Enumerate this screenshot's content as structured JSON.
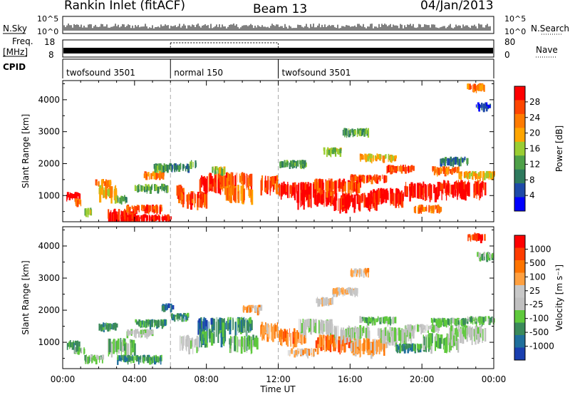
{
  "header": {
    "station": "Rankin Inlet (fitACF)",
    "beam": "Beam 13",
    "date": "04/Jan/2013"
  },
  "strip": {
    "nsky_label": "N.Sky",
    "nsearch_label": "N.Search",
    "nsky_ticks": [
      "10^5",
      "10^0"
    ],
    "nsearch_ticks": [
      "10^5",
      "10^0"
    ],
    "freq_label": "Freq.",
    "freq_unit": "[MHz]",
    "freq_ticks": [
      "18",
      "8"
    ],
    "nave_label": "Nave",
    "nave_ticks": [
      "80",
      "0"
    ],
    "cpid_label": "CPID",
    "programs": [
      {
        "name": "twofsound 3501",
        "start_hour": 0,
        "end_hour": 6
      },
      {
        "name": "normal 150",
        "start_hour": 6,
        "end_hour": 12
      },
      {
        "name": "twofsound 3501",
        "start_hour": 12,
        "end_hour": 24
      }
    ]
  },
  "colors": {
    "power": [
      "#0000ff",
      "#1e4aa8",
      "#2e7a5e",
      "#4ea048",
      "#9acd32",
      "#ffa500",
      "#ff7b00",
      "#ff4500",
      "#ff0000"
    ],
    "velocity": [
      "#1a3fb0",
      "#1f6f9c",
      "#3a8a5a",
      "#5fc93c",
      "#c0c0c0",
      "#c8c8c8",
      "#ffa040",
      "#ff7400",
      "#ff3c00",
      "#ff0000"
    ]
  },
  "chart_data": [
    {
      "type": "heatmap",
      "panel": "power",
      "ylabel": "Slant Range [km]",
      "xlabel": "",
      "xlim_hours": [
        0,
        24
      ],
      "ylim": [
        180,
        4600
      ],
      "yticks": [
        1000,
        2000,
        3000,
        4000
      ],
      "colorbar": {
        "label": "Power [dB]",
        "ticks": [
          4,
          8,
          12,
          16,
          20,
          24,
          28
        ],
        "range": [
          0,
          30
        ]
      },
      "cells": [
        [
          0.2,
          0.9,
          1000,
          1,
          9
        ],
        [
          0.6,
          1.0,
          800,
          1,
          6
        ],
        [
          1.2,
          1.6,
          500,
          1,
          4
        ],
        [
          1.8,
          2.6,
          1400,
          1,
          6
        ],
        [
          2.0,
          3.0,
          1100,
          2,
          5
        ],
        [
          2.5,
          4.0,
          350,
          2,
          8
        ],
        [
          3.0,
          3.5,
          900,
          1,
          3
        ],
        [
          3.2,
          6.0,
          300,
          1,
          8
        ],
        [
          3.5,
          5.5,
          600,
          1,
          7
        ],
        [
          4.0,
          5.8,
          1250,
          1,
          3
        ],
        [
          4.5,
          5.6,
          1650,
          1,
          6
        ],
        [
          5.0,
          6.0,
          1900,
          1,
          3
        ],
        [
          6.0,
          7.0,
          1900,
          1,
          2
        ],
        [
          6.3,
          6.8,
          1100,
          2,
          7
        ],
        [
          6.5,
          8.0,
          900,
          2,
          7
        ],
        [
          7.0,
          7.4,
          2000,
          1,
          3
        ],
        [
          7.6,
          8.8,
          1400,
          2,
          8
        ],
        [
          8.0,
          10.5,
          1500,
          2,
          7
        ],
        [
          9.0,
          10.5,
          1100,
          2,
          6
        ],
        [
          8.3,
          9.0,
          1800,
          1,
          4
        ],
        [
          11.0,
          12.0,
          1400,
          2,
          7
        ],
        [
          12.0,
          14.0,
          1200,
          2,
          8
        ],
        [
          12.0,
          13.5,
          2000,
          1,
          3
        ],
        [
          13.0,
          15.0,
          950,
          2,
          8
        ],
        [
          14.0,
          16.5,
          1300,
          2,
          7
        ],
        [
          15.0,
          17.5,
          850,
          2,
          8
        ],
        [
          16.0,
          18.0,
          1550,
          1,
          7
        ],
        [
          16.5,
          18.5,
          2200,
          1,
          5
        ],
        [
          17.0,
          19.0,
          1000,
          2,
          8
        ],
        [
          18.0,
          19.5,
          1850,
          1,
          7
        ],
        [
          19.0,
          21.0,
          1200,
          2,
          8
        ],
        [
          19.5,
          21.0,
          600,
          1,
          6
        ],
        [
          20.5,
          22.0,
          1800,
          1,
          6
        ],
        [
          21.0,
          22.5,
          2100,
          1,
          2
        ],
        [
          21.0,
          23.5,
          1250,
          2,
          8
        ],
        [
          22.0,
          24.0,
          1650,
          1,
          5
        ],
        [
          23.0,
          23.8,
          3800,
          1,
          1
        ],
        [
          22.5,
          23.5,
          4400,
          1,
          6
        ],
        [
          14.5,
          15.5,
          2400,
          1,
          4
        ],
        [
          15.5,
          17.0,
          3000,
          1,
          3
        ]
      ]
    },
    {
      "type": "heatmap",
      "panel": "velocity",
      "ylabel": "Slant Range [km]",
      "xlabel": "Time UT",
      "xlim_hours": [
        0,
        24
      ],
      "xticks": [
        "00:00",
        "04:00",
        "08:00",
        "12:00",
        "16:00",
        "20:00",
        "00:00"
      ],
      "ylim": [
        180,
        4600
      ],
      "yticks": [
        1000,
        2000,
        3000,
        4000
      ],
      "colorbar": {
        "label": "Velocity [m s⁻¹]",
        "ticks": [
          "1000",
          "500",
          "100",
          "25",
          "-25",
          "-100",
          "-500",
          "-1000"
        ]
      },
      "cells": [
        [
          0.2,
          0.9,
          950,
          1,
          2
        ],
        [
          0.6,
          1.2,
          750,
          1,
          3
        ],
        [
          1.2,
          2.2,
          500,
          1,
          3
        ],
        [
          2.0,
          3.0,
          1500,
          1,
          2
        ],
        [
          2.5,
          4.0,
          900,
          2,
          3
        ],
        [
          3.0,
          5.5,
          500,
          1,
          2
        ],
        [
          3.5,
          5.0,
          1300,
          1,
          4
        ],
        [
          4.0,
          5.8,
          1600,
          1,
          2
        ],
        [
          5.5,
          6.2,
          2100,
          1,
          1
        ],
        [
          6.0,
          7.0,
          1800,
          1,
          2
        ],
        [
          6.5,
          7.5,
          1000,
          2,
          4
        ],
        [
          7.4,
          8.4,
          1550,
          2,
          1
        ],
        [
          7.6,
          9.0,
          1200,
          2,
          2
        ],
        [
          8.5,
          10.5,
          1550,
          2,
          2
        ],
        [
          9.2,
          10.8,
          1000,
          2,
          3
        ],
        [
          10.0,
          11.0,
          2050,
          1,
          6
        ],
        [
          11.0,
          12.0,
          1400,
          2,
          6
        ],
        [
          12.0,
          13.5,
          1200,
          2,
          7
        ],
        [
          12.5,
          14.0,
          700,
          1,
          6
        ],
        [
          13.0,
          15.0,
          1500,
          2,
          4
        ],
        [
          14.0,
          16.0,
          1000,
          2,
          7
        ],
        [
          15.0,
          17.0,
          1300,
          2,
          4
        ],
        [
          16.0,
          18.0,
          900,
          2,
          6
        ],
        [
          16.5,
          18.5,
          1700,
          1,
          3
        ],
        [
          17.5,
          19.5,
          1250,
          2,
          4
        ],
        [
          18.5,
          20.5,
          850,
          1,
          2
        ],
        [
          19.0,
          21.0,
          1450,
          1,
          4
        ],
        [
          20.0,
          22.0,
          1050,
          2,
          3
        ],
        [
          20.5,
          22.5,
          1650,
          1,
          3
        ],
        [
          21.5,
          23.5,
          1300,
          2,
          4
        ],
        [
          22.5,
          24.0,
          1700,
          1,
          3
        ],
        [
          23.0,
          24.0,
          3700,
          1,
          3
        ],
        [
          22.5,
          23.5,
          4300,
          1,
          8
        ],
        [
          15.0,
          16.5,
          2600,
          1,
          5
        ],
        [
          16.0,
          17.0,
          3200,
          1,
          6
        ],
        [
          14.0,
          15.0,
          2300,
          1,
          5
        ]
      ]
    }
  ]
}
